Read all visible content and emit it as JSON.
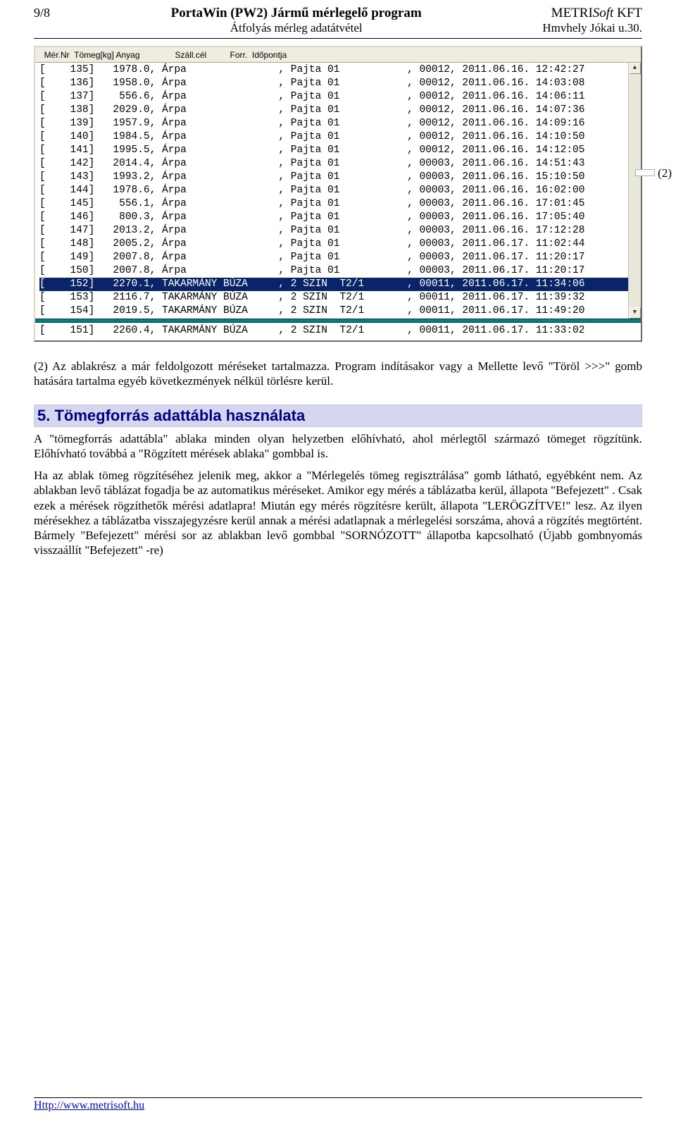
{
  "header": {
    "page_no": "9/8",
    "title": "PortaWin (PW2) Jármű mérlegelő program",
    "subtitle": "Átfolyás mérleg adatátvétel",
    "company_prefix": "METRI",
    "company_suffix_italic": "Soft",
    "company_tail": " KFT",
    "address": "Hmvhely Jókai u.30."
  },
  "panel": {
    "columns_line": "  Mér.Nr  Tömeg[kg] Anyag               Száll.cél          Forr.  Időpontja",
    "rows": [
      "[    135]   1978.0, Árpa               , Pajta 01           , 00012, 2011.06.16. 12:42:27",
      "[    136]   1958.0, Árpa               , Pajta 01           , 00012, 2011.06.16. 14:03:08",
      "[    137]    556.6, Árpa               , Pajta 01           , 00012, 2011.06.16. 14:06:11",
      "[    138]   2029.0, Árpa               , Pajta 01           , 00012, 2011.06.16. 14:07:36",
      "[    139]   1957.9, Árpa               , Pajta 01           , 00012, 2011.06.16. 14:09:16",
      "[    140]   1984.5, Árpa               , Pajta 01           , 00012, 2011.06.16. 14:10:50",
      "[    141]   1995.5, Árpa               , Pajta 01           , 00012, 2011.06.16. 14:12:05",
      "[    142]   2014.4, Árpa               , Pajta 01           , 00003, 2011.06.16. 14:51:43",
      "[    143]   1993.2, Árpa               , Pajta 01           , 00003, 2011.06.16. 15:10:50",
      "[    144]   1978.6, Árpa               , Pajta 01           , 00003, 2011.06.16. 16:02:00",
      "[    145]    556.1, Árpa               , Pajta 01           , 00003, 2011.06.16. 17:01:45",
      "[    146]    800.3, Árpa               , Pajta 01           , 00003, 2011.06.16. 17:05:40",
      "[    147]   2013.2, Árpa               , Pajta 01           , 00003, 2011.06.16. 17:12:28",
      "[    148]   2005.2, Árpa               , Pajta 01           , 00003, 2011.06.17. 11:02:44",
      "[    149]   2007.8, Árpa               , Pajta 01           , 00003, 2011.06.17. 11:20:17",
      "[    150]   2007.8, Árpa               , Pajta 01           , 00003, 2011.06.17. 11:20:17",
      "[    152]   2270.1, TAKARMÁNY BÚZA     , 2 SZIN  T2/1       , 00011, 2011.06.17. 11:34:06",
      "[    153]   2116.7, TAKARMÁNY BÚZA     , 2 SZIN  T2/1       , 00011, 2011.06.17. 11:39:32",
      "[    154]   2019.5, TAKARMÁNY BÚZA     , 2 SZIN  T2/1       , 00011, 2011.06.17. 11:49:20"
    ],
    "selected_index": 16,
    "footer_row": "[    151]   2260.4, TAKARMÁNY BÚZA     , 2 SZIN  T2/1       , 00011, 2011.06.17. 11:33:02",
    "scroll_up": "▲",
    "scroll_down": "▼"
  },
  "callout": "(2)",
  "text": {
    "p1": "(2) Az ablakrész a már feldolgozott méréseket tartalmazza. Program indításakor vagy a Mellette levő \"Töröl >>>\" gomb hatására tartalma egyéb következmények nélkül törlésre kerül.",
    "section_title": "5. Tömegforrás adattábla használata",
    "p2": "A \"tömegforrás adattábla\" ablaka minden olyan helyzetben előhívható, ahol mérlegtől származó tömeget rögzítünk. Előhívható továbbá a \"Rögzített mérések ablaka\" gombbal is.",
    "p3": "Ha az ablak tömeg rögzítéséhez jelenik meg, akkor a \"Mérlegelés tömeg regisztrálása\" gomb látható, egyébként nem. Az ablakban levő táblázat fogadja be az automatikus méréseket. Amikor egy mérés a táblázatba kerül, állapota \"Befejezett\" . Csak ezek a mérések rögzíthetők mérési adatlapra! Miután egy mérés rögzítésre került, állapota \"LERÖGZÍTVE!\" lesz. Az ilyen mérésekhez a táblázatba visszajegyzésre kerül annak a mérési adatlapnak a mérlegelési sorszáma, ahová a rögzítés megtörtént. Bármely \"Befejezett\" mérési sor az ablakban levő gombbal \"SORNÓZOTT\" állapotba kapcsolható (Újabb gombnyomás visszaállít \"Befejezett\" -re)"
  },
  "footer": {
    "link_text": "Http://www.metrisoft.hu"
  },
  "colors": {
    "selection_bg": "#0a246a",
    "selection_fg": "#ffffff",
    "panel_bg": "#efece0",
    "teal_separator": "#008080",
    "heading_bg": "#d6d6f0",
    "heading_fg": "#000080"
  }
}
